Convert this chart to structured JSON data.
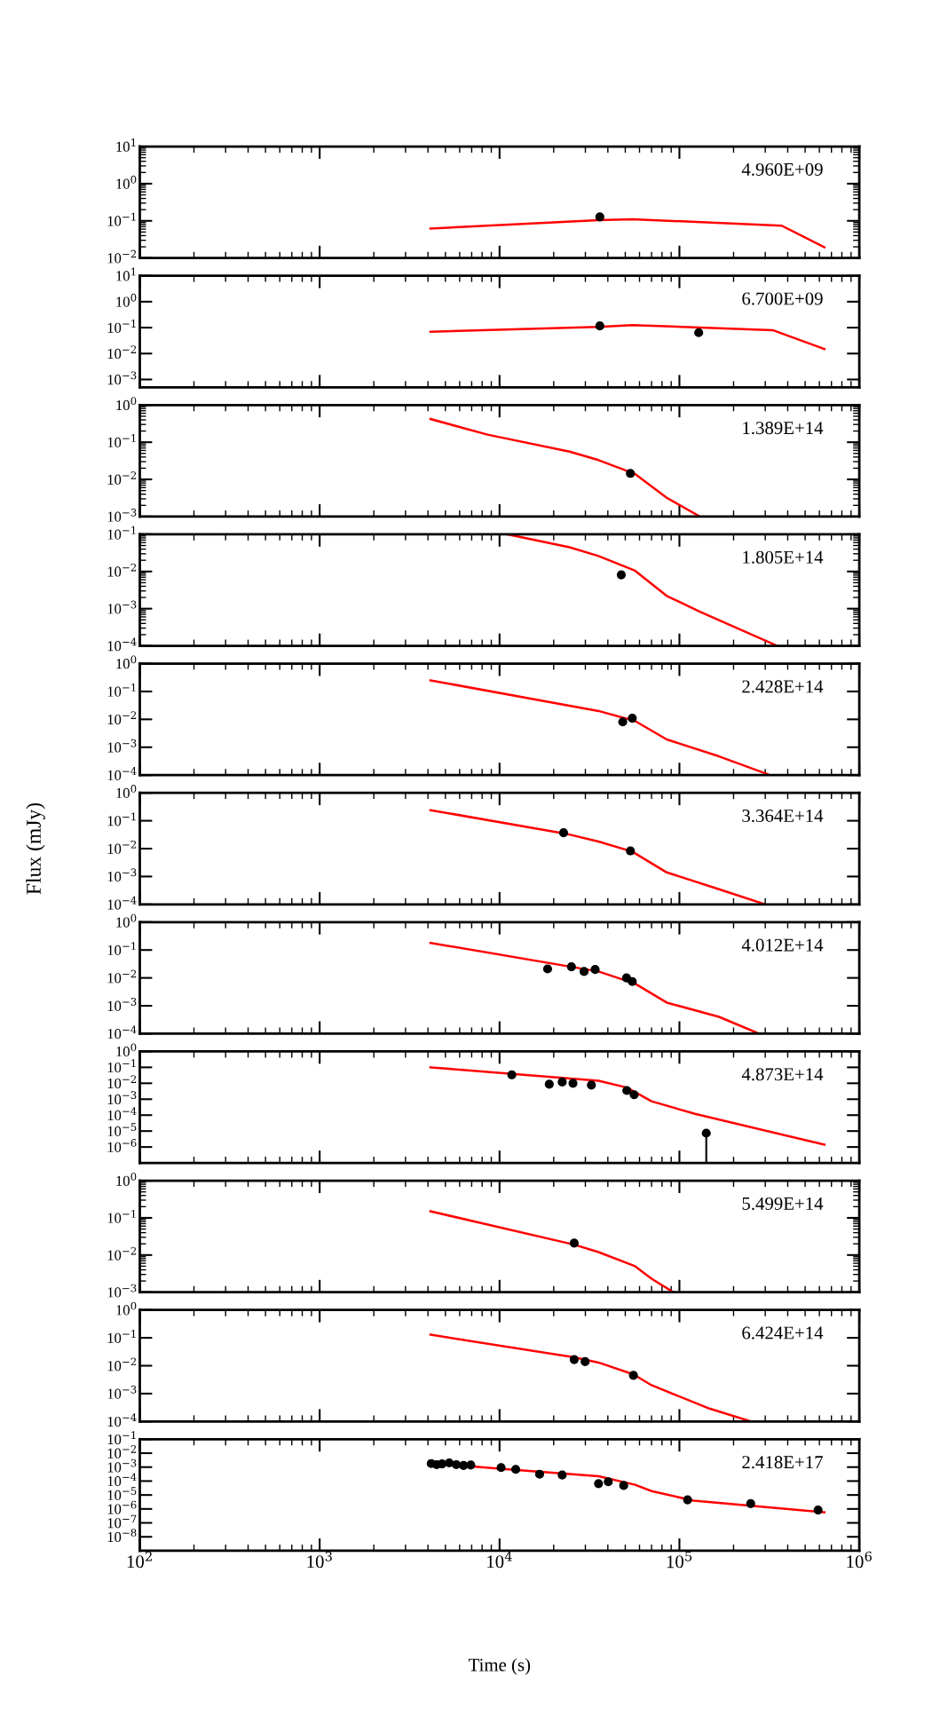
{
  "chart_data": [
    {
      "type": "line",
      "log": "xy",
      "tick_labels": "y",
      "xlim": [
        100,
        1000000
      ],
      "xticks": [
        {
          "value": 100,
          "label": null
        },
        {
          "value": 1000,
          "label": null
        },
        {
          "value": 10000,
          "label": null
        },
        {
          "value": 100000,
          "label": null
        },
        {
          "value": 1000000,
          "label": null
        }
      ],
      "ylim": [
        0.01,
        10
      ],
      "yticks": [
        {
          "value": 0.01,
          "label": "10$^{−2}$"
        },
        {
          "value": 0.1,
          "label": "10$^{−1}$"
        },
        {
          "value": 1,
          "label": "10$^{0}$"
        },
        {
          "value": 10,
          "label": "10$^{1}$"
        }
      ],
      "annotations": [
        "4.960E+09"
      ],
      "series": [
        {
          "color": "#ff0000",
          "line_style": "solid",
          "x": [
            4130,
            35500,
            54700,
            370000,
            640000
          ],
          "values": [
            0.062,
            0.105,
            0.111,
            0.074,
            0.0195
          ]
        },
        {
          "type": "scatter",
          "color": "#000000",
          "marker": "circle",
          "x": [
            36100
          ],
          "values": [
            0.127
          ]
        }
      ]
    },
    {
      "type": "line",
      "log": "xy",
      "tick_labels": "y",
      "xlim": [
        100,
        1000000
      ],
      "xticks": [
        {
          "value": 100,
          "label": null
        },
        {
          "value": 1000,
          "label": null
        },
        {
          "value": 10000,
          "label": null
        },
        {
          "value": 100000,
          "label": null
        },
        {
          "value": 1000000,
          "label": null
        }
      ],
      "ylim": [
        0.0005,
        10
      ],
      "yticks": [
        {
          "value": 0.001,
          "label": "10$^{−3}$"
        },
        {
          "value": 0.01,
          "label": "10$^{−2}$"
        },
        {
          "value": 0.1,
          "label": "10$^{−1}$"
        },
        {
          "value": 1,
          "label": "10$^{0}$"
        },
        {
          "value": 10,
          "label": "10$^{1}$"
        }
      ],
      "annotations": [
        "6.700E+09"
      ],
      "series": [
        {
          "color": "#ff0000",
          "line_style": "solid",
          "x": [
            4130,
            35500,
            54700,
            330000,
            640000
          ],
          "values": [
            0.069,
            0.107,
            0.125,
            0.08,
            0.015
          ]
        },
        {
          "type": "scatter",
          "color": "#000000",
          "marker": "circle",
          "x": [
            36100,
            128000
          ],
          "values": [
            0.116,
            0.064
          ]
        }
      ]
    },
    {
      "type": "line",
      "log": "xy",
      "tick_labels": "y",
      "xlim": [
        100,
        1000000
      ],
      "xticks": [
        {
          "value": 100,
          "label": null
        },
        {
          "value": 1000,
          "label": null
        },
        {
          "value": 10000,
          "label": null
        },
        {
          "value": 100000,
          "label": null
        },
        {
          "value": 1000000,
          "label": null
        }
      ],
      "ylim": [
        0.001,
        1
      ],
      "yticks": [
        {
          "value": 0.001,
          "label": "10$^{−3}$"
        },
        {
          "value": 0.01,
          "label": "10$^{−2}$"
        },
        {
          "value": 0.1,
          "label": "10$^{−1}$"
        },
        {
          "value": 1,
          "label": "10$^{0}$"
        }
      ],
      "annotations": [
        "1.389E+14"
      ],
      "series": [
        {
          "color": "#ff0000",
          "line_style": "solid",
          "x": [
            4130,
            8570,
            24500,
            35500,
            56700,
            85000,
            130000
          ],
          "values": [
            0.42,
            0.16,
            0.056,
            0.033,
            0.014,
            0.0032,
            0.001
          ]
        },
        {
          "type": "scatter",
          "color": "#000000",
          "marker": "circle",
          "x": [
            53400
          ],
          "values": [
            0.0145
          ]
        }
      ]
    },
    {
      "type": "line",
      "log": "xy",
      "tick_labels": "y",
      "xlim": [
        100,
        1000000
      ],
      "xticks": [
        {
          "value": 100,
          "label": null
        },
        {
          "value": 1000,
          "label": null
        },
        {
          "value": 10000,
          "label": null
        },
        {
          "value": 100000,
          "label": null
        },
        {
          "value": 1000000,
          "label": null
        }
      ],
      "ylim": [
        0.0001,
        0.1
      ],
      "yticks": [
        {
          "value": 0.0001,
          "label": "10$^{−4}$"
        },
        {
          "value": 0.001,
          "label": "10$^{−3}$"
        },
        {
          "value": 0.01,
          "label": "10$^{−2}$"
        },
        {
          "value": 0.1,
          "label": "10$^{−1}$"
        }
      ],
      "annotations": [
        "1.805E+14"
      ],
      "series": [
        {
          "color": "#ff0000",
          "line_style": "solid",
          "x": [
            11100,
            24500,
            35500,
            56700,
            85000,
            130000,
            350000
          ],
          "values": [
            0.1,
            0.045,
            0.026,
            0.0105,
            0.0022,
            0.00083,
            0.0001
          ]
        },
        {
          "type": "scatter",
          "color": "#000000",
          "marker": "circle",
          "x": [
            47500
          ],
          "values": [
            0.0081
          ]
        }
      ]
    },
    {
      "type": "line",
      "log": "xy",
      "tick_labels": "y",
      "xlim": [
        100,
        1000000
      ],
      "xticks": [
        {
          "value": 100,
          "label": null
        },
        {
          "value": 1000,
          "label": null
        },
        {
          "value": 10000,
          "label": null
        },
        {
          "value": 100000,
          "label": null
        },
        {
          "value": 1000000,
          "label": null
        }
      ],
      "ylim": [
        0.0001,
        1
      ],
      "yticks": [
        {
          "value": 0.0001,
          "label": "10$^{−4}$"
        },
        {
          "value": 0.001,
          "label": "10$^{−3}$"
        },
        {
          "value": 0.01,
          "label": "10$^{−2}$"
        },
        {
          "value": 0.1,
          "label": "10$^{−1}$"
        },
        {
          "value": 1,
          "label": "10$^{0}$"
        }
      ],
      "annotations": [
        "2.428E+14"
      ],
      "series": [
        {
          "color": "#ff0000",
          "line_style": "solid",
          "x": [
            4130,
            35500,
            56700,
            85000,
            166000,
            310000
          ],
          "values": [
            0.25,
            0.02,
            0.0087,
            0.0019,
            0.00047,
            0.000107
          ]
        },
        {
          "type": "scatter",
          "color": "#000000",
          "marker": "circle",
          "x": [
            48400,
            54700
          ],
          "values": [
            0.0081,
            0.011
          ]
        }
      ]
    },
    {
      "type": "line",
      "log": "xy",
      "tick_labels": "y",
      "xlim": [
        100,
        1000000
      ],
      "xticks": [
        {
          "value": 100,
          "label": null
        },
        {
          "value": 1000,
          "label": null
        },
        {
          "value": 10000,
          "label": null
        },
        {
          "value": 100000,
          "label": null
        },
        {
          "value": 1000000,
          "label": null
        }
      ],
      "ylim": [
        0.0001,
        1
      ],
      "yticks": [
        {
          "value": 0.0001,
          "label": "10$^{−4}$"
        },
        {
          "value": 0.001,
          "label": "10$^{−3}$"
        },
        {
          "value": 0.01,
          "label": "10$^{−2}$"
        },
        {
          "value": 0.1,
          "label": "10$^{−1}$"
        },
        {
          "value": 1,
          "label": "10$^{0}$"
        }
      ],
      "ylabel": "Flux (mJy)",
      "annotations": [
        "3.364E+14"
      ],
      "series": [
        {
          "color": "#ff0000",
          "line_style": "solid",
          "x": [
            4130,
            23000,
            35500,
            54700,
            85000,
            166000,
            300000
          ],
          "values": [
            0.24,
            0.035,
            0.018,
            0.0078,
            0.0014,
            0.00035,
            0.0001
          ]
        },
        {
          "type": "scatter",
          "color": "#000000",
          "marker": "circle",
          "x": [
            22700,
            53400
          ],
          "values": [
            0.037,
            0.0083
          ]
        }
      ]
    },
    {
      "type": "line",
      "log": "xy",
      "tick_labels": "y",
      "xlim": [
        100,
        1000000
      ],
      "xticks": [
        {
          "value": 100,
          "label": null
        },
        {
          "value": 1000,
          "label": null
        },
        {
          "value": 10000,
          "label": null
        },
        {
          "value": 100000,
          "label": null
        },
        {
          "value": 1000000,
          "label": null
        }
      ],
      "ylim": [
        0.0001,
        1
      ],
      "yticks": [
        {
          "value": 0.0001,
          "label": "10$^{−4}$"
        },
        {
          "value": 0.001,
          "label": "10$^{−3}$"
        },
        {
          "value": 0.01,
          "label": "10$^{−2}$"
        },
        {
          "value": 0.1,
          "label": "10$^{−1}$"
        },
        {
          "value": 1,
          "label": "10$^{0}$"
        }
      ],
      "annotations": [
        "4.012E+14"
      ],
      "series": [
        {
          "color": "#ff0000",
          "line_style": "solid",
          "x": [
            4130,
            35500,
            56700,
            85000,
            166000,
            270000
          ],
          "values": [
            0.18,
            0.017,
            0.0062,
            0.0013,
            0.0004,
            0.000107
          ]
        },
        {
          "type": "scatter",
          "color": "#000000",
          "marker": "circle",
          "x": [
            18500,
            25100,
            29500,
            34000,
            50800,
            54700
          ],
          "values": [
            0.021,
            0.025,
            0.017,
            0.02,
            0.01,
            0.0074
          ]
        }
      ]
    },
    {
      "type": "line",
      "log": "xy",
      "tick_labels": "y",
      "xlim": [
        100,
        1000000
      ],
      "xticks": [
        {
          "value": 100,
          "label": null
        },
        {
          "value": 1000,
          "label": null
        },
        {
          "value": 10000,
          "label": null
        },
        {
          "value": 100000,
          "label": null
        },
        {
          "value": 1000000,
          "label": null
        }
      ],
      "ylim": [
        1e-07,
        1
      ],
      "yticks": [
        {
          "value": 1e-06,
          "label": "10$^{−6}$"
        },
        {
          "value": 1e-05,
          "label": "10$^{−5}$"
        },
        {
          "value": 0.0001,
          "label": "10$^{−4}$"
        },
        {
          "value": 0.001,
          "label": "10$^{−3}$"
        },
        {
          "value": 0.01,
          "label": "10$^{−2}$"
        },
        {
          "value": 0.1,
          "label": "10$^{−1}$"
        },
        {
          "value": 1,
          "label": "10$^{0}$"
        }
      ],
      "annotations": [
        "4.873E+14"
      ],
      "series": [
        {
          "color": "#ff0000",
          "line_style": "solid",
          "x": [
            4130,
            35500,
            51000,
            70000,
            122000,
            640000
          ],
          "values": [
            0.1,
            0.0144,
            0.0054,
            0.00074,
            0.00012,
            1.4e-06
          ]
        },
        {
          "type": "scatter",
          "color": "#000000",
          "marker": "circle",
          "x": [
            11700,
            18900,
            22300,
            25600,
            32400,
            51000,
            56000,
            141000
          ],
          "values": [
            0.034,
            0.0087,
            0.012,
            0.01,
            0.0077,
            0.0035,
            0.0019,
            7.4e-06
          ],
          "errors": [
            null,
            null,
            null,
            null,
            null,
            null,
            null,
            [
              1e-07,
              7.4e-06
            ]
          ]
        }
      ]
    },
    {
      "type": "line",
      "log": "xy",
      "tick_labels": "y",
      "xlim": [
        100,
        1000000
      ],
      "xticks": [
        {
          "value": 100,
          "label": null
        },
        {
          "value": 1000,
          "label": null
        },
        {
          "value": 10000,
          "label": null
        },
        {
          "value": 100000,
          "label": null
        },
        {
          "value": 1000000,
          "label": null
        }
      ],
      "ylim": [
        0.001,
        1
      ],
      "yticks": [
        {
          "value": 0.001,
          "label": "10$^{−3}$"
        },
        {
          "value": 0.01,
          "label": "10$^{−2}$"
        },
        {
          "value": 0.1,
          "label": "10$^{−1}$"
        },
        {
          "value": 1,
          "label": "10$^{0}$"
        }
      ],
      "annotations": [
        "5.499E+14"
      ],
      "series": [
        {
          "color": "#ff0000",
          "line_style": "solid",
          "x": [
            4130,
            26000,
            35500,
            56700,
            70000,
            92500
          ],
          "values": [
            0.15,
            0.019,
            0.012,
            0.005,
            0.0023,
            0.001
          ]
        },
        {
          "type": "scatter",
          "color": "#000000",
          "marker": "circle",
          "x": [
            26000
          ],
          "values": [
            0.021
          ]
        }
      ]
    },
    {
      "type": "line",
      "log": "xy",
      "tick_labels": "y",
      "xlim": [
        100,
        1000000
      ],
      "xticks": [
        {
          "value": 100,
          "label": null
        },
        {
          "value": 1000,
          "label": null
        },
        {
          "value": 10000,
          "label": null
        },
        {
          "value": 100000,
          "label": null
        },
        {
          "value": 1000000,
          "label": null
        }
      ],
      "ylim": [
        0.0001,
        1
      ],
      "yticks": [
        {
          "value": 0.0001,
          "label": "10$^{−4}$"
        },
        {
          "value": 0.001,
          "label": "10$^{−3}$"
        },
        {
          "value": 0.01,
          "label": "10$^{−2}$"
        },
        {
          "value": 0.1,
          "label": "10$^{−1}$"
        },
        {
          "value": 1,
          "label": "10$^{0}$"
        }
      ],
      "annotations": [
        "6.424E+14"
      ],
      "series": [
        {
          "color": "#ff0000",
          "line_style": "solid",
          "x": [
            4130,
            26000,
            35500,
            55500,
            70000,
            147000,
            250000
          ],
          "values": [
            0.13,
            0.02,
            0.013,
            0.0049,
            0.002,
            0.00029,
            0.0001
          ]
        },
        {
          "type": "scatter",
          "color": "#000000",
          "marker": "circle",
          "x": [
            26000,
            29900,
            55500
          ],
          "values": [
            0.0166,
            0.014,
            0.0045
          ]
        }
      ]
    },
    {
      "type": "line",
      "log": "xy",
      "xlim": [
        100,
        1000000
      ],
      "xticks": [
        {
          "value": 100,
          "label": "10$^{2}$"
        },
        {
          "value": 1000,
          "label": "10$^{3}$"
        },
        {
          "value": 10000,
          "label": "10$^{4}$"
        },
        {
          "value": 100000,
          "label": "10$^{5}$"
        },
        {
          "value": 1000000,
          "label": "10$^{6}$"
        }
      ],
      "ylim": [
        1e-09,
        0.1
      ],
      "yticks": [
        {
          "value": 1e-08,
          "label": "10$^{−8}$"
        },
        {
          "value": 1e-07,
          "label": "10$^{−7}$"
        },
        {
          "value": 1e-06,
          "label": "10$^{−6}$"
        },
        {
          "value": 1e-05,
          "label": "10$^{−5}$"
        },
        {
          "value": 0.0001,
          "label": "10$^{−4}$"
        },
        {
          "value": 0.001,
          "label": "10$^{−3}$"
        },
        {
          "value": 0.01,
          "label": "10$^{−2}$"
        },
        {
          "value": 0.1,
          "label": "10$^{−1}$"
        }
      ],
      "xlabel": "Time (s)",
      "annotations": [
        "2.418E+17"
      ],
      "series": [
        {
          "color": "#ff0000",
          "line_style": "solid",
          "x": [
            4130,
            10000,
            35500,
            56700,
            70000,
            120000,
            640000
          ],
          "values": [
            0.002,
            0.00078,
            0.00022,
            5.4e-05,
            1.9e-05,
            3.9e-06,
            5.8e-07
          ]
        },
        {
          "type": "scatter",
          "color": "#000000",
          "marker": "circle",
          "x": [
            4170,
            4470,
            4790,
            5250,
            5750,
            6310,
            6920,
            10200,
            12300,
            16700,
            22300,
            35500,
            40200,
            49000,
            111000,
            249000,
            590000
          ],
          "values": [
            0.0018,
            0.0015,
            0.0017,
            0.002,
            0.0015,
            0.0013,
            0.0014,
            0.00093,
            0.00069,
            0.00031,
            0.00027,
            6.5e-05,
            8.9e-05,
            4.8e-05,
            4.5e-06,
            2.4e-06,
            8.3e-07
          ]
        }
      ]
    }
  ]
}
